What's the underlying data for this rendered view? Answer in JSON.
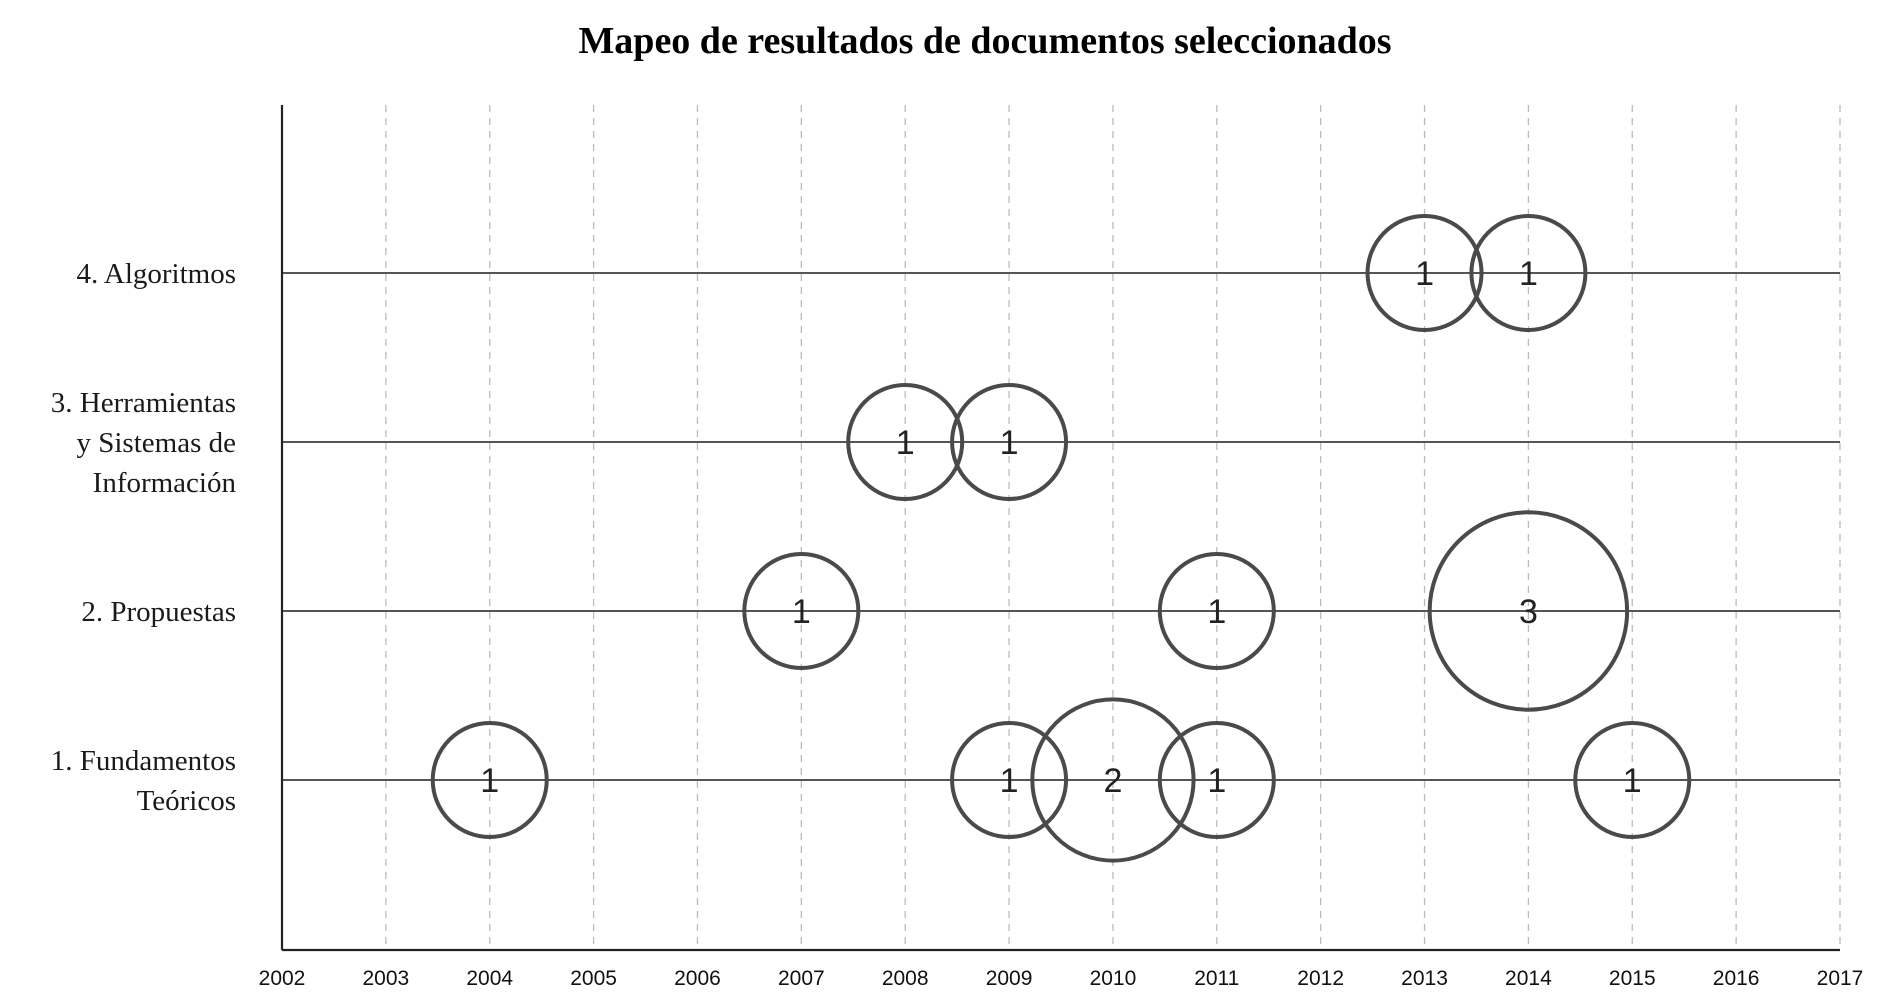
{
  "chart_data": {
    "type": "bubble",
    "title": "Mapeo de resultados de documentos seleccionados",
    "xlabel": "",
    "ylabel": "",
    "xlim": [
      2002,
      2017
    ],
    "x_ticks": [
      "2002",
      "2003",
      "2004",
      "2005",
      "2006",
      "2007",
      "2008",
      "2009",
      "2010",
      "2011",
      "2012",
      "2013",
      "2014",
      "2015",
      "2016",
      "2017"
    ],
    "categories": [
      "1. Fundamentos Teóricos",
      "2. Propuestas",
      "3. Herramientas y Sistemas de Información",
      "4. Algoritmos"
    ],
    "category_lines": [
      [
        "1. Fundamentos",
        "Teóricos"
      ],
      [
        "2. Propuestas"
      ],
      [
        "3. Herramientas",
        "y Sistemas de",
        "Información"
      ],
      [
        "4. Algoritmos"
      ]
    ],
    "grid": {
      "vertical": true,
      "dashed": true
    },
    "legend": "none",
    "colors": {
      "bubble_stroke": "#4a4a4a",
      "axis": "#222222",
      "row_line": "#555555",
      "grid": "#bbbbbb"
    },
    "points": [
      {
        "category": "1. Fundamentos Teóricos",
        "x": 2004,
        "value": 1
      },
      {
        "category": "1. Fundamentos Teóricos",
        "x": 2009,
        "value": 1
      },
      {
        "category": "1. Fundamentos Teóricos",
        "x": 2010,
        "value": 2
      },
      {
        "category": "1. Fundamentos Teóricos",
        "x": 2011,
        "value": 1
      },
      {
        "category": "1. Fundamentos Teóricos",
        "x": 2015,
        "value": 1
      },
      {
        "category": "2. Propuestas",
        "x": 2007,
        "value": 1
      },
      {
        "category": "2. Propuestas",
        "x": 2011,
        "value": 1
      },
      {
        "category": "2. Propuestas",
        "x": 2014,
        "value": 3
      },
      {
        "category": "3. Herramientas y Sistemas de Información",
        "x": 2008,
        "value": 1
      },
      {
        "category": "3. Herramientas y Sistemas de Información",
        "x": 2009,
        "value": 1
      },
      {
        "category": "4. Algoritmos",
        "x": 2013,
        "value": 1
      },
      {
        "category": "4. Algoritmos",
        "x": 2014,
        "value": 1
      }
    ]
  }
}
